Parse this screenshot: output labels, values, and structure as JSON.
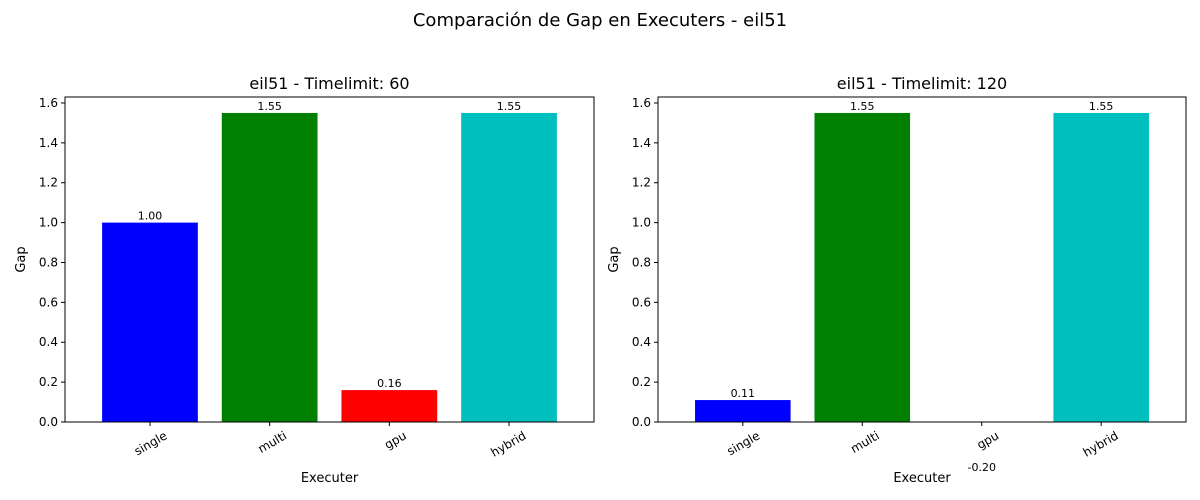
{
  "figure": {
    "suptitle": "Comparación de Gap en Executers - eil51"
  },
  "chart_data": [
    {
      "type": "bar",
      "title": "eil51 - Timelimit: 60",
      "xlabel": "Executer",
      "ylabel": "Gap",
      "categories": [
        "single",
        "multi",
        "gpu",
        "hybrid"
      ],
      "values": [
        1.0,
        1.55,
        0.16,
        1.55
      ],
      "value_labels": [
        "1.00",
        "1.55",
        "0.16",
        "1.55"
      ],
      "colors": [
        "#0000ff",
        "#008000",
        "#ff0000",
        "#00bfbf"
      ],
      "ylim": [
        0,
        1.63
      ],
      "yticks": [
        0.0,
        0.2,
        0.4,
        0.6,
        0.8,
        1.0,
        1.2,
        1.4,
        1.6
      ],
      "ytick_labels": [
        "0.0",
        "0.2",
        "0.4",
        "0.6",
        "0.8",
        "1.0",
        "1.2",
        "1.4",
        "1.6"
      ],
      "grid": false,
      "legend": "none"
    },
    {
      "type": "bar",
      "title": "eil51 - Timelimit: 120",
      "xlabel": "Executer",
      "ylabel": "Gap",
      "categories": [
        "single",
        "multi",
        "gpu",
        "hybrid"
      ],
      "values": [
        0.11,
        1.55,
        -0.2,
        1.55
      ],
      "value_labels": [
        "0.11",
        "1.55",
        "-0.20",
        "1.55"
      ],
      "colors": [
        "#0000ff",
        "#008000",
        "#ff0000",
        "#00bfbf"
      ],
      "ylim": [
        0,
        1.63
      ],
      "yticks": [
        0.0,
        0.2,
        0.4,
        0.6,
        0.8,
        1.0,
        1.2,
        1.4,
        1.6
      ],
      "ytick_labels": [
        "0.0",
        "0.2",
        "0.4",
        "0.6",
        "0.8",
        "1.0",
        "1.2",
        "1.4",
        "1.6"
      ],
      "grid": false,
      "legend": "none"
    }
  ]
}
